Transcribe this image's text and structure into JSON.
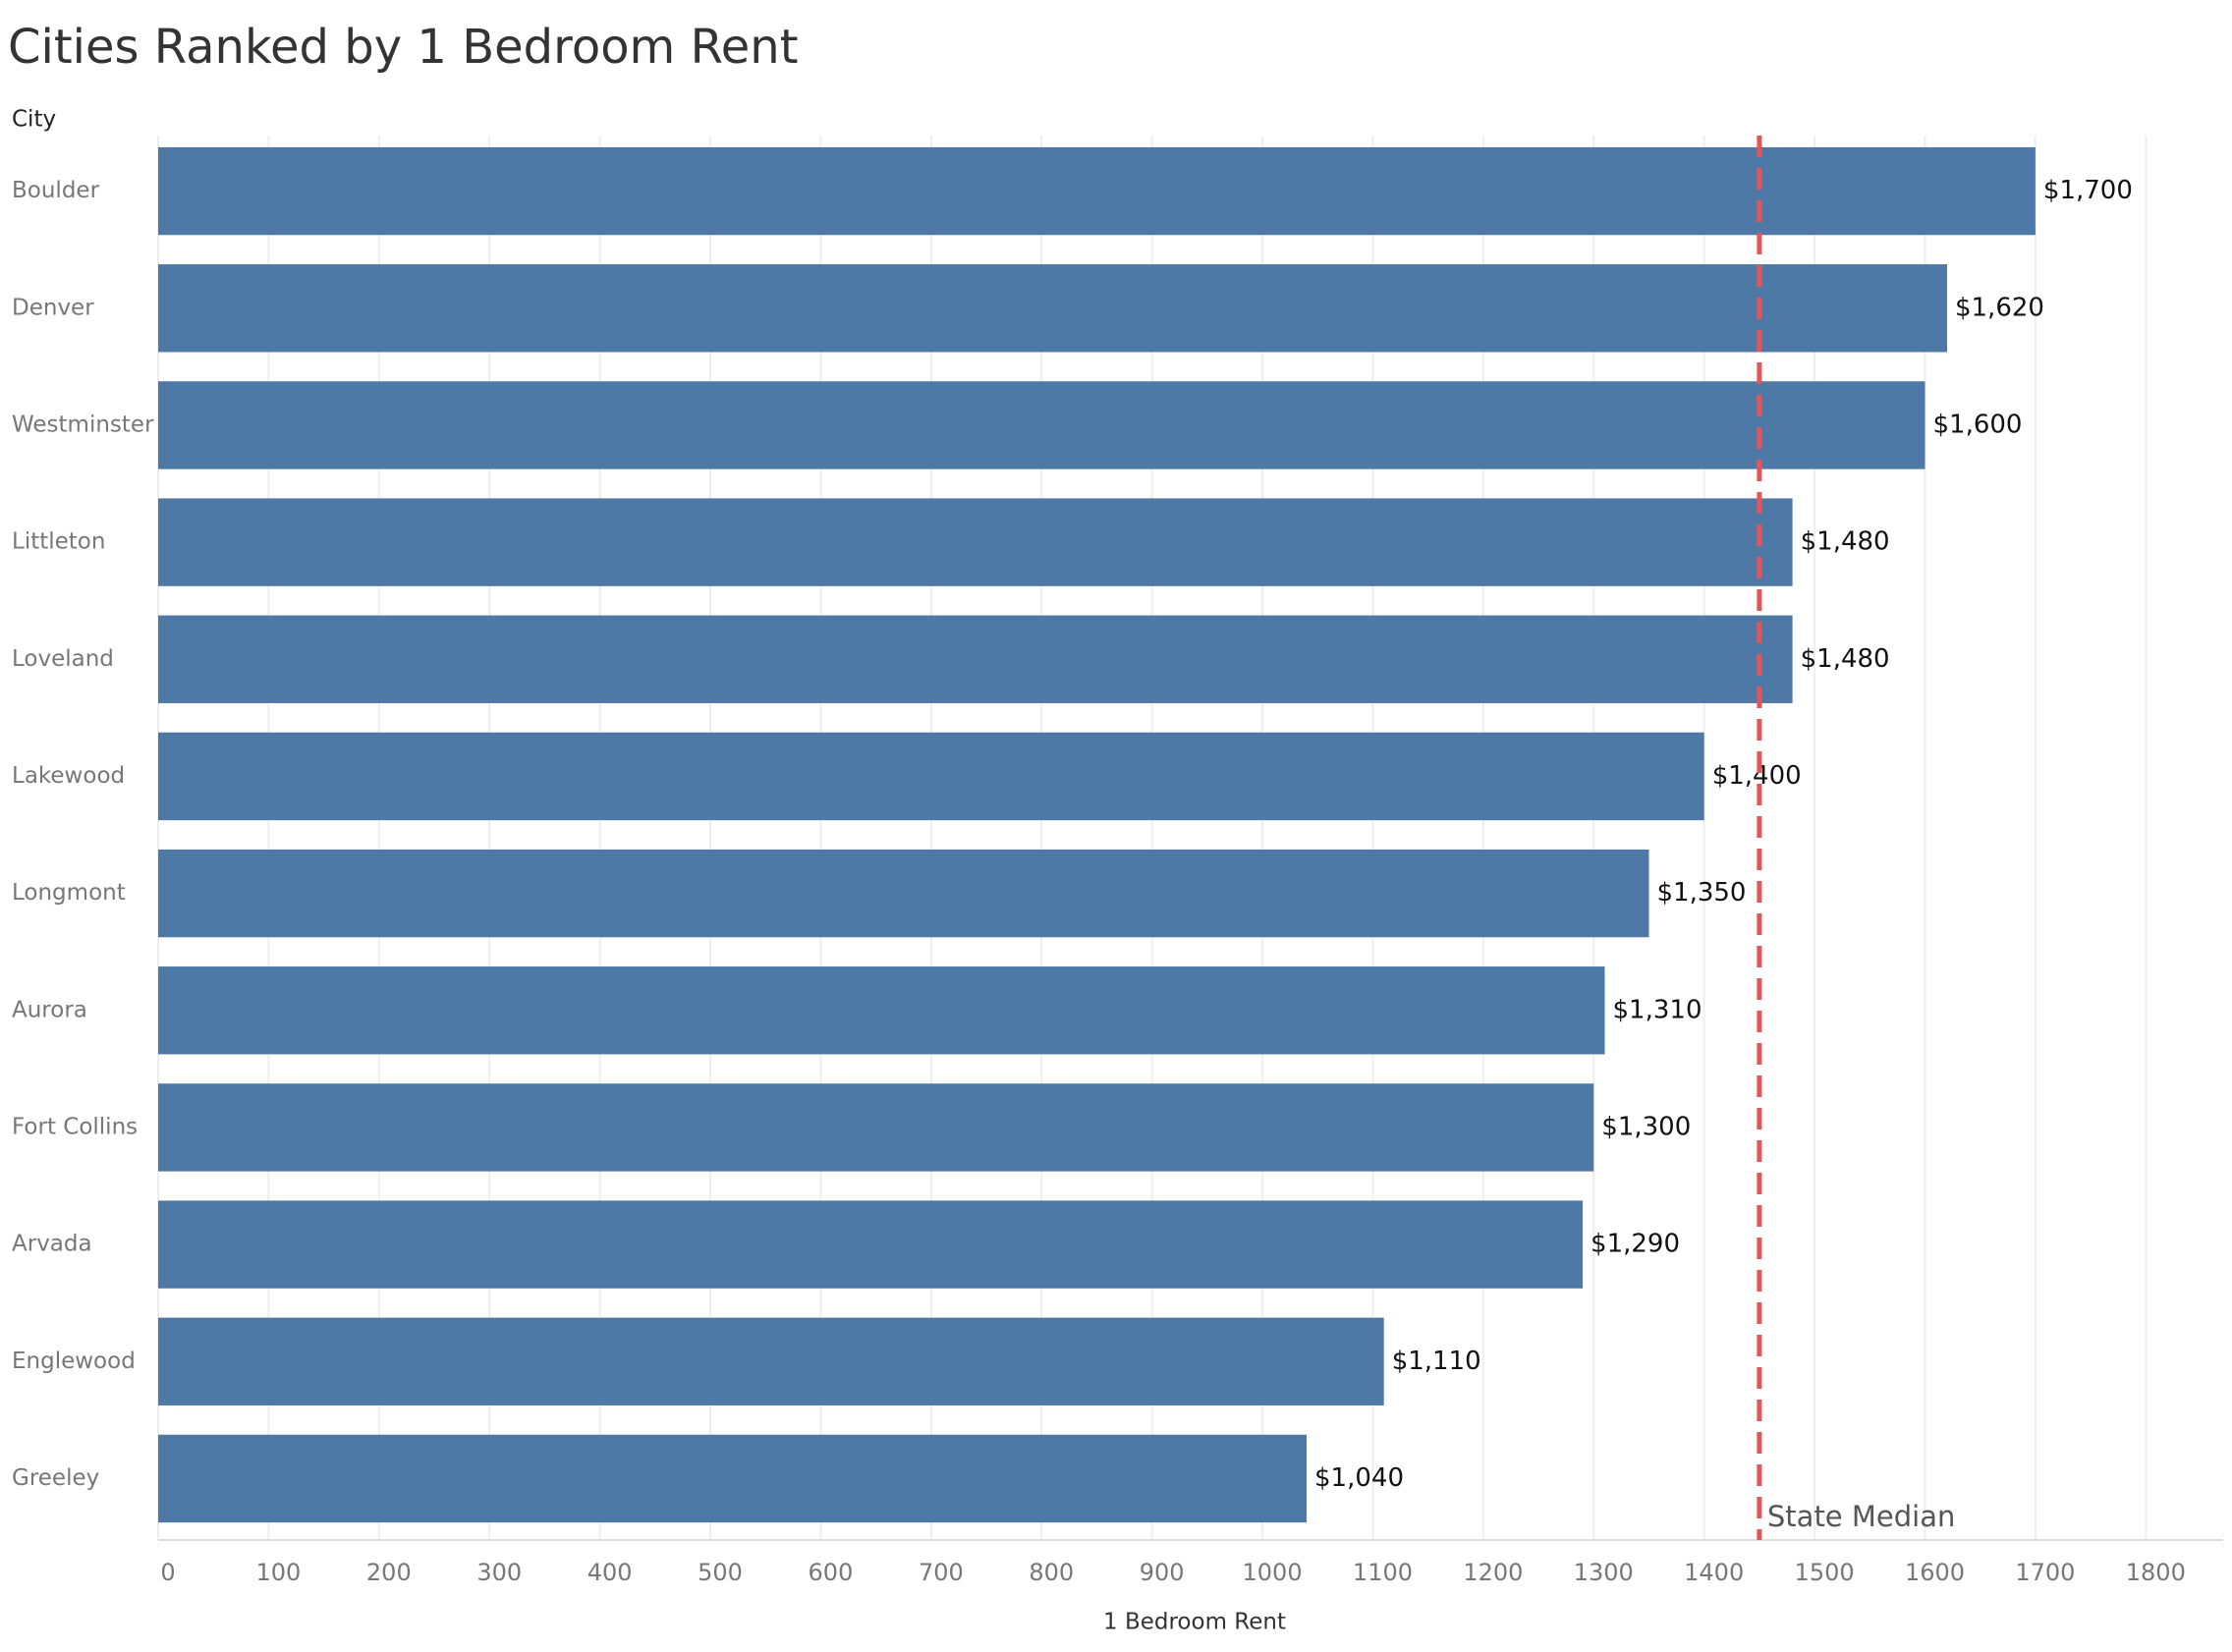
{
  "chart_data": {
    "type": "bar",
    "orientation": "horizontal",
    "title": "Cities Ranked by 1 Bedroom Rent",
    "y_label": "City",
    "x_label": "1 Bedroom Rent",
    "categories": [
      "Boulder",
      "Denver",
      "Westminster",
      "Littleton",
      "Loveland",
      "Lakewood",
      "Longmont",
      "Aurora",
      "Fort Collins",
      "Arvada",
      "Englewood",
      "Greeley"
    ],
    "values": [
      1700,
      1620,
      1600,
      1480,
      1480,
      1400,
      1350,
      1310,
      1300,
      1290,
      1110,
      1040
    ],
    "value_labels": [
      "$1,700",
      "$1,620",
      "$1,600",
      "$1,480",
      "$1,480",
      "$1,400",
      "$1,350",
      "$1,310",
      "$1,300",
      "$1,290",
      "$1,110",
      "$1,040"
    ],
    "color": "#4e79a7",
    "xlim": [
      0,
      1870
    ],
    "xticks": [
      0,
      100,
      200,
      300,
      400,
      500,
      600,
      700,
      800,
      900,
      1000,
      1100,
      1200,
      1300,
      1400,
      1500,
      1600,
      1700,
      1800
    ],
    "grid": true,
    "reference_line": {
      "value": 1450,
      "label": "State Median",
      "color": "#e15759"
    }
  }
}
